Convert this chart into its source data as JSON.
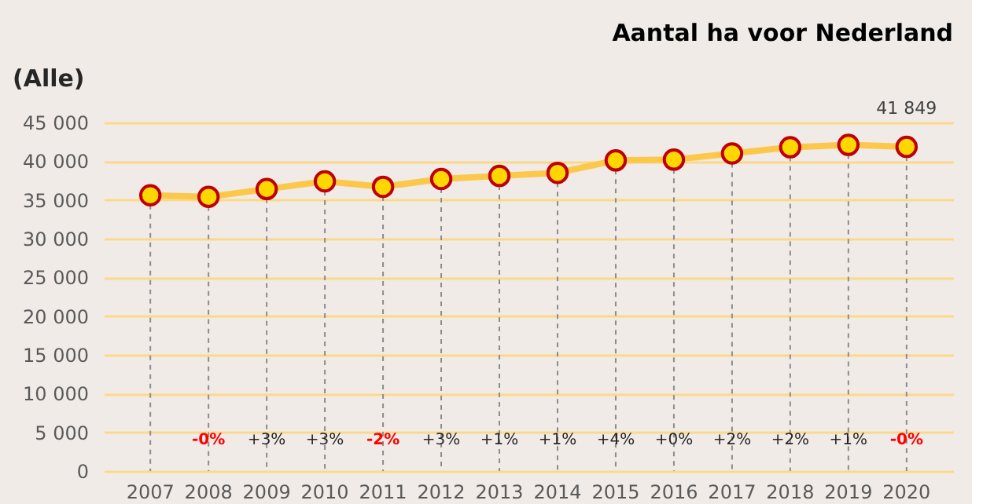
{
  "chart_data": {
    "type": "line",
    "title": "Aantal ha voor Nederland",
    "categories": [
      "2007",
      "2008",
      "2009",
      "2010",
      "2011",
      "2012",
      "2013",
      "2014",
      "2015",
      "2016",
      "2017",
      "2018",
      "2019",
      "2020"
    ],
    "series": [
      {
        "color": "#fcc84a",
        "values": [
          35600,
          35400,
          36400,
          37400,
          36700,
          37700,
          38100,
          38500,
          40100,
          40200,
          41000,
          41800,
          42100,
          41849
        ],
        "value_labels": [
          null,
          null,
          null,
          null,
          null,
          null,
          null,
          null,
          null,
          null,
          null,
          null,
          null,
          "41 849"
        ]
      }
    ],
    "ylim": [
      0,
      45000
    ],
    "yticks": [
      {
        "value": 0,
        "label": "0"
      },
      {
        "value": 5000,
        "label": "5 000"
      },
      {
        "value": 10000,
        "label": "10 000"
      },
      {
        "value": 15000,
        "label": "15 000"
      },
      {
        "value": 20000,
        "label": "20 000"
      },
      {
        "value": 25000,
        "label": "25 000"
      },
      {
        "value": 30000,
        "label": "30 000"
      },
      {
        "value": 35000,
        "label": "35 000"
      },
      {
        "value": 40000,
        "label": "40 000"
      },
      {
        "value": 45000,
        "label": "45 000"
      }
    ],
    "grid": true,
    "marker": "circle",
    "line_style": "solid",
    "annotations": [
      "(Alle)",
      "-0%",
      "+3%",
      "+3%",
      "-2%",
      "+3%",
      "+1%",
      "+1%",
      "+4%",
      "+0%",
      "+2%",
      "+2%",
      "+1%",
      "-0%"
    ]
  }
}
